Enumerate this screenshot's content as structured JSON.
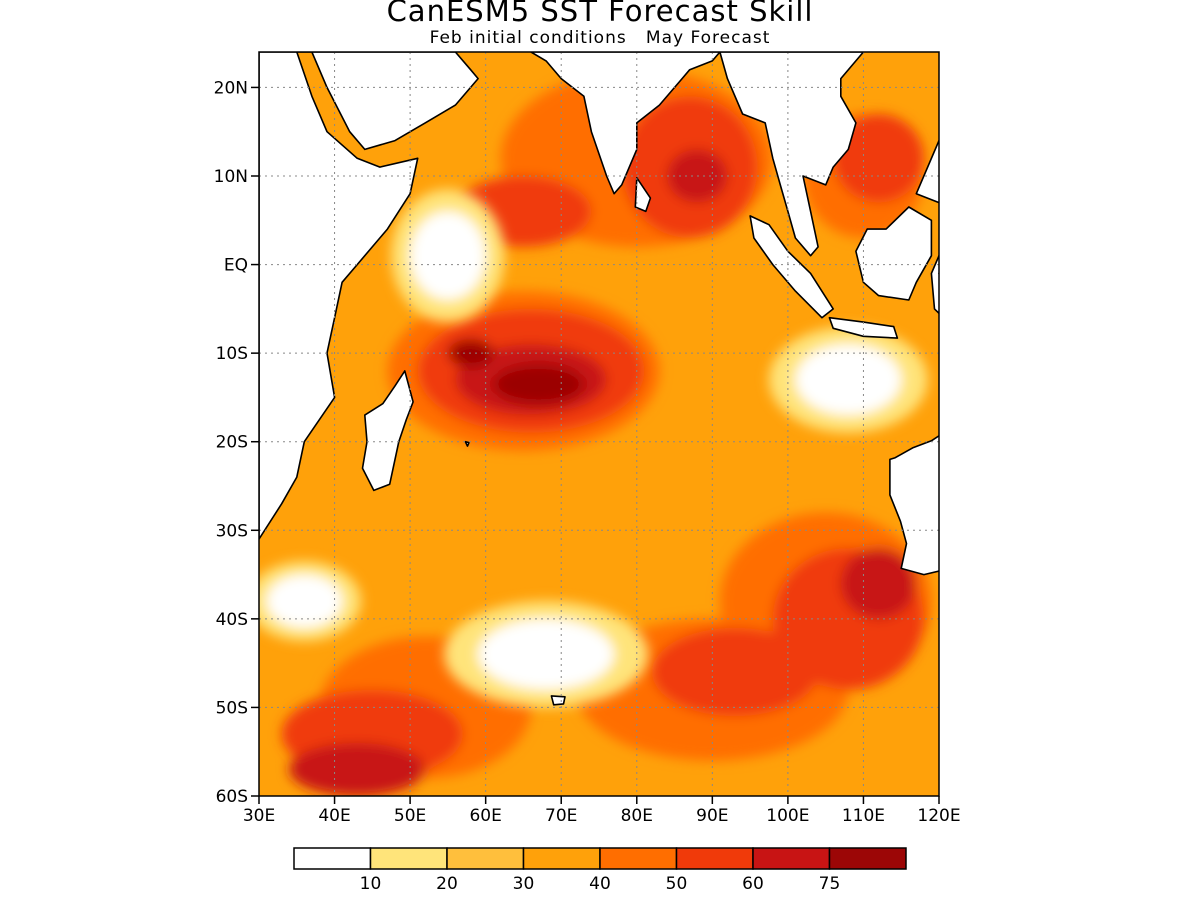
{
  "title": "CanESM5 SST Forecast Skill",
  "subtitle": "Feb initial conditions   May Forecast",
  "map": {
    "region": {
      "lon": [
        30,
        120
      ],
      "lat": [
        -60,
        24
      ]
    },
    "lat_ticks": [
      {
        "value": 20,
        "label": "20N"
      },
      {
        "value": 10,
        "label": "10N"
      },
      {
        "value": 0,
        "label": "EQ"
      },
      {
        "value": -10,
        "label": "10S"
      },
      {
        "value": -20,
        "label": "20S"
      },
      {
        "value": -30,
        "label": "30S"
      },
      {
        "value": -40,
        "label": "40S"
      },
      {
        "value": -50,
        "label": "50S"
      },
      {
        "value": -60,
        "label": "60S"
      }
    ],
    "lon_ticks": [
      {
        "value": 30,
        "label": "30E"
      },
      {
        "value": 40,
        "label": "40E"
      },
      {
        "value": 50,
        "label": "50E"
      },
      {
        "value": 60,
        "label": "60E"
      },
      {
        "value": 70,
        "label": "70E"
      },
      {
        "value": 80,
        "label": "80E"
      },
      {
        "value": 90,
        "label": "90E"
      },
      {
        "value": 100,
        "label": "100E"
      },
      {
        "value": 110,
        "label": "110E"
      },
      {
        "value": 120,
        "label": "120E"
      }
    ],
    "skill_bands": [
      {
        "level": 1,
        "center": [
          65,
          -12
        ],
        "r": [
          18,
          9
        ]
      },
      {
        "level": 1,
        "center": [
          80,
          12
        ],
        "r": [
          18,
          10
        ]
      },
      {
        "level": 1,
        "center": [
          105,
          -38
        ],
        "r": [
          14,
          10
        ]
      },
      {
        "level": 1,
        "center": [
          52,
          -50
        ],
        "r": [
          14,
          8
        ]
      },
      {
        "level": 1,
        "center": [
          90,
          -48
        ],
        "r": [
          18,
          8
        ]
      },
      {
        "level": 1,
        "center": [
          110,
          10
        ],
        "r": [
          8,
          7
        ]
      },
      {
        "level": 2,
        "center": [
          66,
          -12
        ],
        "r": [
          15,
          7
        ]
      },
      {
        "level": 2,
        "center": [
          87,
          11
        ],
        "r": [
          9,
          8
        ]
      },
      {
        "level": 2,
        "center": [
          65,
          6
        ],
        "r": [
          9,
          4
        ]
      },
      {
        "level": 2,
        "center": [
          108,
          -40
        ],
        "r": [
          10,
          8
        ]
      },
      {
        "level": 2,
        "center": [
          93,
          -46
        ],
        "r": [
          11,
          5
        ]
      },
      {
        "level": 2,
        "center": [
          45,
          -53
        ],
        "r": [
          12,
          5
        ]
      },
      {
        "level": 2,
        "center": [
          112,
          12
        ],
        "r": [
          6,
          5
        ]
      },
      {
        "level": 3,
        "center": [
          66,
          -13
        ],
        "r": [
          10,
          4
        ]
      },
      {
        "level": 3,
        "center": [
          43,
          -57
        ],
        "r": [
          9,
          3
        ]
      },
      {
        "level": 3,
        "center": [
          112,
          -36
        ],
        "r": [
          5,
          4
        ]
      },
      {
        "level": 3,
        "center": [
          88,
          10
        ],
        "r": [
          4,
          3
        ]
      },
      {
        "level": 4,
        "center": [
          67,
          -13.5
        ],
        "r": [
          6,
          2.2
        ]
      },
      {
        "level": 4,
        "center": [
          58,
          -10
        ],
        "r": [
          3,
          1.6
        ]
      }
    ],
    "low_skill_areas": [
      {
        "center": [
          55,
          1
        ],
        "r": [
          5,
          5
        ]
      },
      {
        "center": [
          68,
          -44
        ],
        "r": [
          9,
          4
        ]
      },
      {
        "center": [
          36,
          -38
        ],
        "r": [
          5,
          3
        ]
      },
      {
        "center": [
          108,
          -13
        ],
        "r": [
          7,
          4
        ]
      }
    ]
  },
  "colorbar": {
    "colors": [
      "#ffffff",
      "#ffe47a",
      "#ffbf3c",
      "#ffa10a",
      "#ff6e00",
      "#f03a0a",
      "#c81414",
      "#9c0606"
    ],
    "labels": [
      "10",
      "20",
      "30",
      "40",
      "50",
      "60",
      "75"
    ]
  }
}
